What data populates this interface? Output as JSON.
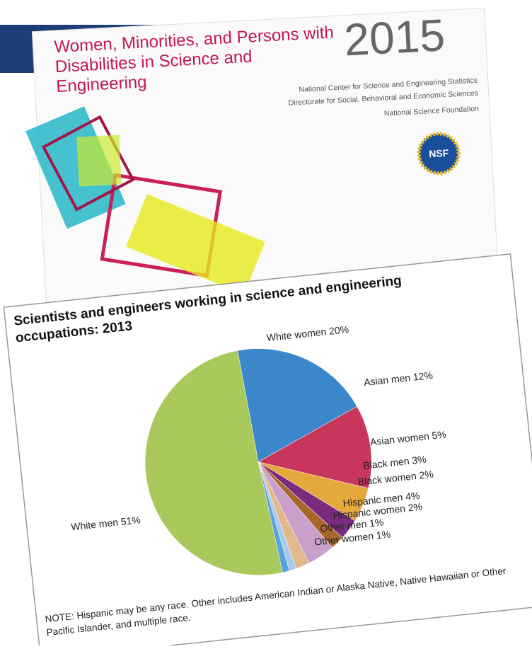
{
  "cover": {
    "title": "Women, Minorities, and Persons with Disabilities in Science and Engineering",
    "year": "2015",
    "org_lines": [
      "National Center for Science and Engineering Statistics",
      "Directorate for Social, Behavioral and Economic Sciences",
      "National Science Foundation"
    ],
    "logo": "NSF"
  },
  "chart_data": {
    "type": "pie",
    "title": "Scientists and engineers working in science and engineering occupations: 2013",
    "values": [
      20,
      12,
      5,
      3,
      2,
      4,
      2,
      1,
      1,
      51
    ],
    "value_labels": [
      "White women 20%",
      "Asian men 12%",
      "Asian women 5%",
      "Black men 3%",
      "Black women 2%",
      "Hispanic men 4%",
      "Hispanic women 2%",
      "Other men 1%",
      "Other women 1%",
      "White men 51%"
    ],
    "colors": [
      "#3b87c9",
      "#c8365c",
      "#e6a73c",
      "#7b2b7d",
      "#a9662c",
      "#c9a0c9",
      "#e2b98f",
      "#a9c9ea",
      "#5aa1e0",
      "#a9c95c"
    ],
    "note": "NOTE: Hispanic may be any race. Other includes American Indian or Alaska Native, Native Hawaiian or Other Pacific Islander, and multiple race."
  }
}
